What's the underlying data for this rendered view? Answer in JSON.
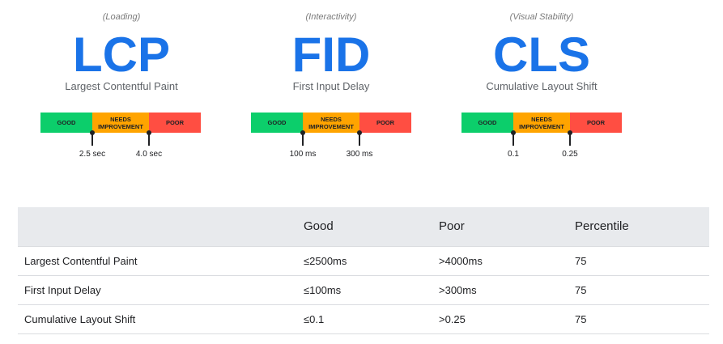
{
  "metrics": [
    {
      "category": "(Loading)",
      "abbr": "LCP",
      "name": "Largest Contentful Paint",
      "good": "GOOD",
      "needs": "NEEDS IMPROVEMENT",
      "poor": "POOR",
      "t1": "2.5 sec",
      "t2": "4.0 sec"
    },
    {
      "category": "(Interactivity)",
      "abbr": "FID",
      "name": "First Input Delay",
      "good": "GOOD",
      "needs": "NEEDS IMPROVEMENT",
      "poor": "POOR",
      "t1": "100 ms",
      "t2": "300 ms"
    },
    {
      "category": "(Visual Stability)",
      "abbr": "CLS",
      "name": "Cumulative Layout Shift",
      "good": "GOOD",
      "needs": "NEEDS IMPROVEMENT",
      "poor": "POOR",
      "t1": "0.1",
      "t2": "0.25"
    }
  ],
  "colors": {
    "accent": "#1a73e8",
    "good": "#0cce6b",
    "needs": "#ffa400",
    "poor": "#ff4e42"
  },
  "table": {
    "headers": [
      "",
      "Good",
      "Poor",
      "Percentile"
    ],
    "rows": [
      [
        "Largest Contentful Paint",
        "≤2500ms",
        ">4000ms",
        "75"
      ],
      [
        "First Input Delay",
        "≤100ms",
        ">300ms",
        "75"
      ],
      [
        "Cumulative Layout Shift",
        "≤0.1",
        ">0.25",
        "75"
      ]
    ]
  }
}
